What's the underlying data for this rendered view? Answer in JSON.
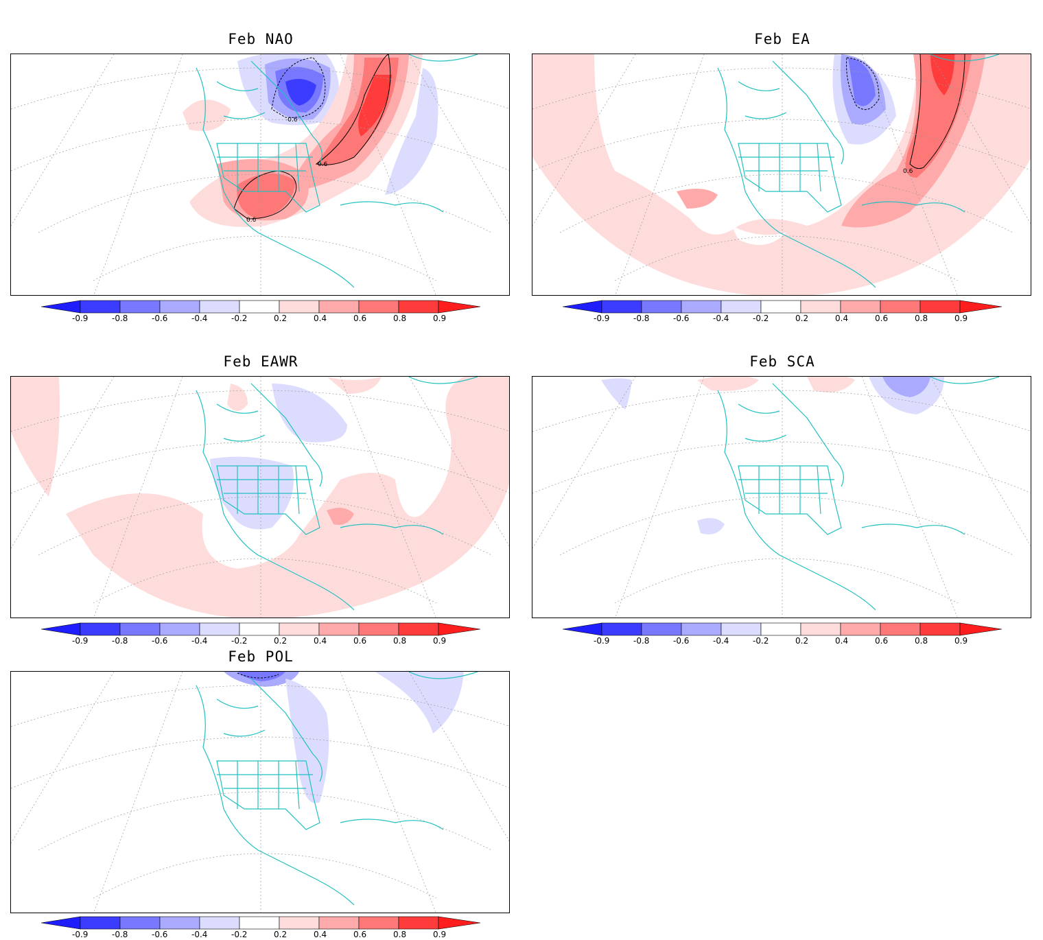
{
  "figure": {
    "panels": [
      {
        "id": "nao",
        "title": "Feb  NAO",
        "contour_labels": [
          "-0.6",
          "0.6",
          "0.6"
        ]
      },
      {
        "id": "ea",
        "title": "Feb  EA",
        "contour_labels": [
          "0.6"
        ]
      },
      {
        "id": "eawr",
        "title": "Feb  EAWR",
        "contour_labels": []
      },
      {
        "id": "sca",
        "title": "Feb  SCA",
        "contour_labels": []
      },
      {
        "id": "pol",
        "title": "Feb  POL",
        "contour_labels": []
      }
    ]
  },
  "colorbar": {
    "labels": [
      "-0.9",
      "-0.8",
      "-0.6",
      "-0.4",
      "-0.2",
      "0.2",
      "0.4",
      "0.6",
      "0.8",
      "0.9"
    ],
    "colors": [
      "#1e1eff",
      "#3c3cff",
      "#7878ff",
      "#aaaaff",
      "#dcdcff",
      "#ffffff",
      "#ffdcdc",
      "#ffaaaa",
      "#ff7878",
      "#ff3c3c",
      "#ff1e1e"
    ]
  },
  "colors": {
    "coastline": "#20c0c0",
    "grid": "#999999",
    "contour": "#000000"
  }
}
